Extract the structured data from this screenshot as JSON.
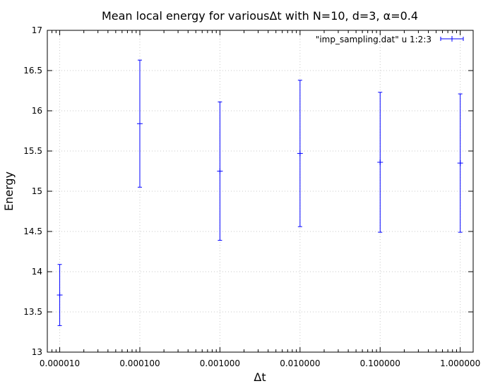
{
  "chart_data": {
    "type": "scatter",
    "title": "Mean local energy for variousΔt with N=10, d=3, α=0.4",
    "xlabel": "Δt",
    "ylabel": "Energy",
    "x_scale": "log",
    "xlim": [
      7e-06,
      1.45
    ],
    "ylim": [
      13,
      17
    ],
    "grid": true,
    "legend_position": "top-right",
    "x_tick_values": [
      1e-05,
      0.0001,
      0.001,
      0.01,
      0.1,
      1
    ],
    "x_tick_labels": [
      "0.000010",
      "0.000100",
      "0.001000",
      "0.010000",
      "0.100000",
      "1.000000"
    ],
    "y_tick_values": [
      13,
      13.5,
      14,
      14.5,
      15,
      15.5,
      16,
      16.5,
      17
    ],
    "y_tick_labels": [
      "13",
      "13.5",
      "14",
      "14.5",
      "15",
      "15.5",
      "16",
      "16.5",
      "17"
    ],
    "series": [
      {
        "name": "\"imp_sampling.dat\" u 1:2:3",
        "color": "#0000ff",
        "style": "yerrorbars",
        "x": [
          1e-05,
          0.0001,
          0.001,
          0.01,
          0.1,
          1
        ],
        "y": [
          13.71,
          15.84,
          15.25,
          15.47,
          15.36,
          15.35
        ],
        "yerr": [
          0.38,
          0.79,
          0.86,
          0.91,
          0.87,
          0.86
        ]
      }
    ]
  }
}
